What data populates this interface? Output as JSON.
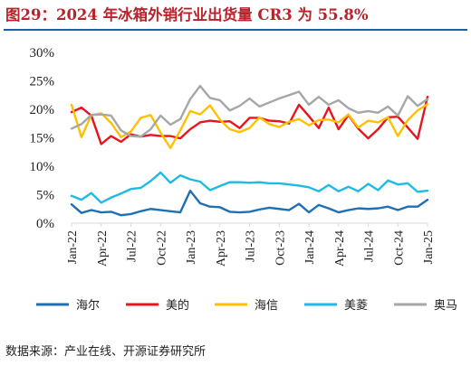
{
  "title": "图29：2024 年冰箱外销行业出货量 CR3 为 55.8%",
  "source": "数据来源：产业在线、开源证券研究所",
  "chart_data": {
    "type": "line",
    "ylim": [
      0,
      30
    ],
    "yticks": [
      0,
      5,
      10,
      15,
      20,
      25,
      30
    ],
    "ytick_labels": [
      "0%",
      "5%",
      "10%",
      "15%",
      "20%",
      "25%",
      "30%"
    ],
    "x": [
      "Jan-22",
      "Feb-22",
      "Mar-22",
      "Apr-22",
      "May-22",
      "Jun-22",
      "Jul-22",
      "Aug-22",
      "Sep-22",
      "Oct-22",
      "Nov-22",
      "Dec-22",
      "Jan-23",
      "Feb-23",
      "Mar-23",
      "Apr-23",
      "May-23",
      "Jun-23",
      "Jul-23",
      "Aug-23",
      "Sep-23",
      "Oct-23",
      "Nov-23",
      "Dec-23",
      "Jan-24",
      "Feb-24",
      "Mar-24",
      "Apr-24",
      "May-24",
      "Jun-24",
      "Jul-24",
      "Aug-24",
      "Sep-24",
      "Oct-24",
      "Nov-24",
      "Dec-24",
      "Jan-25"
    ],
    "xtick_labels": [
      "Jan-22",
      "Apr-22",
      "Jul-22",
      "Oct-22",
      "Jan-23",
      "Apr-23",
      "Jul-23",
      "Oct-23",
      "Jan-24",
      "Apr-24",
      "Jul-24",
      "Oct-24",
      "Jan-25"
    ],
    "grid": false,
    "legend_position": "bottom",
    "series": [
      {
        "name": "海尔",
        "color": "#1f6fb5",
        "values": [
          3.3,
          1.8,
          2.3,
          1.9,
          2.0,
          1.4,
          1.6,
          2.1,
          2.5,
          2.3,
          2.1,
          1.9,
          5.7,
          3.5,
          2.9,
          2.8,
          2.0,
          1.9,
          2.0,
          2.4,
          2.7,
          2.5,
          2.3,
          3.4,
          1.9,
          3.2,
          2.6,
          1.9,
          2.3,
          2.6,
          2.5,
          2.6,
          2.9,
          2.3,
          2.9,
          2.9,
          4.1
        ]
      },
      {
        "name": "美的",
        "color": "#e8141e",
        "values": [
          19.5,
          20.3,
          18.9,
          13.9,
          15.3,
          14.3,
          15.6,
          15.2,
          15.5,
          15.3,
          15.3,
          14.9,
          16.5,
          17.7,
          18.0,
          17.8,
          17.9,
          16.7,
          18.5,
          18.5,
          18.0,
          17.9,
          17.5,
          20.8,
          18.8,
          16.7,
          20.3,
          16.5,
          19.0,
          16.6,
          14.9,
          16.5,
          18.6,
          18.7,
          16.8,
          14.8,
          22.2
        ]
      },
      {
        "name": "海信",
        "color": "#ffc000",
        "values": [
          20.8,
          15.1,
          19.0,
          19.3,
          17.6,
          15.1,
          16.1,
          18.5,
          19.0,
          15.9,
          13.2,
          16.3,
          19.7,
          19.1,
          20.7,
          18.2,
          16.5,
          16.0,
          16.7,
          18.6,
          17.4,
          16.9,
          17.8,
          18.3,
          17.2,
          18.1,
          18.2,
          17.7,
          19.1,
          16.8,
          18.0,
          17.7,
          18.6,
          15.3,
          18.1,
          19.8,
          20.9
        ]
      },
      {
        "name": "美菱",
        "color": "#1fb9e6",
        "values": [
          4.8,
          4.1,
          5.3,
          3.6,
          4.5,
          5.2,
          6.0,
          6.2,
          7.4,
          8.9,
          7.1,
          8.4,
          7.7,
          7.3,
          5.8,
          6.5,
          7.2,
          7.2,
          7.1,
          7.2,
          7.0,
          7.0,
          6.8,
          6.6,
          6.3,
          5.6,
          6.7,
          5.6,
          6.4,
          5.6,
          6.9,
          5.8,
          7.5,
          6.8,
          7.0,
          5.5,
          5.7
        ]
      },
      {
        "name": "奥马",
        "color": "#a6a6a6",
        "values": [
          16.6,
          17.4,
          19.0,
          19.1,
          18.9,
          16.3,
          15.3,
          15.2,
          16.5,
          18.9,
          17.3,
          18.3,
          21.8,
          24.1,
          22.0,
          21.6,
          19.8,
          20.6,
          21.9,
          20.5,
          21.2,
          21.9,
          22.5,
          23.1,
          20.8,
          22.2,
          20.8,
          21.6,
          20.2,
          19.4,
          19.7,
          19.4,
          20.5,
          18.9,
          22.3,
          20.6,
          21.8
        ]
      }
    ]
  }
}
